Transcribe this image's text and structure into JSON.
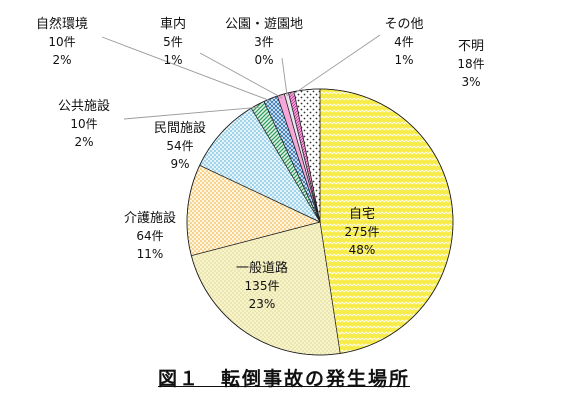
{
  "caption": "図１　転倒事故の発生場所",
  "chart_data": {
    "type": "pie",
    "title": "図１　転倒事故の発生場所",
    "slices": [
      {
        "label": "自宅",
        "count_label": "275件",
        "pct_label": "48%",
        "value": 275,
        "color": "#f7ec47",
        "pattern": "zigzag"
      },
      {
        "label": "一般道路",
        "count_label": "135件",
        "pct_label": "23%",
        "value": 135,
        "color": "#f8f4c6",
        "pattern": "dots-dense"
      },
      {
        "label": "介護施設",
        "count_label": "64件",
        "pct_label": "11%",
        "value": 64,
        "color": "#f8c86a",
        "pattern": "dots-orange"
      },
      {
        "label": "民間施設",
        "count_label": "54件",
        "pct_label": "9%",
        "value": 54,
        "color": "#cfeaf6",
        "pattern": "dots-blue"
      },
      {
        "label": "公共施設",
        "count_label": "10件",
        "pct_label": "2%",
        "value": 10,
        "color": "#3aa86a",
        "pattern": "diag-green"
      },
      {
        "label": "自然環境",
        "count_label": "10件",
        "pct_label": "2%",
        "value": 10,
        "color": "#2f74b8",
        "pattern": "cross-blue"
      },
      {
        "label": "車内",
        "count_label": "5件",
        "pct_label": "1%",
        "value": 5,
        "color": "#f6a6d8",
        "pattern": "solid"
      },
      {
        "label": "公園・遊園地",
        "count_label": "3件",
        "pct_label": "0%",
        "value": 3,
        "color": "#e8e6ee",
        "pattern": "solid"
      },
      {
        "label": "その他",
        "count_label": "4件",
        "pct_label": "1%",
        "value": 4,
        "color": "#cf3ea8",
        "pattern": "stripes-magenta"
      },
      {
        "label": "不明",
        "count_label": "18件",
        "pct_label": "3%",
        "value": 18,
        "color": "#ffffff",
        "pattern": "dots-dark"
      }
    ]
  }
}
